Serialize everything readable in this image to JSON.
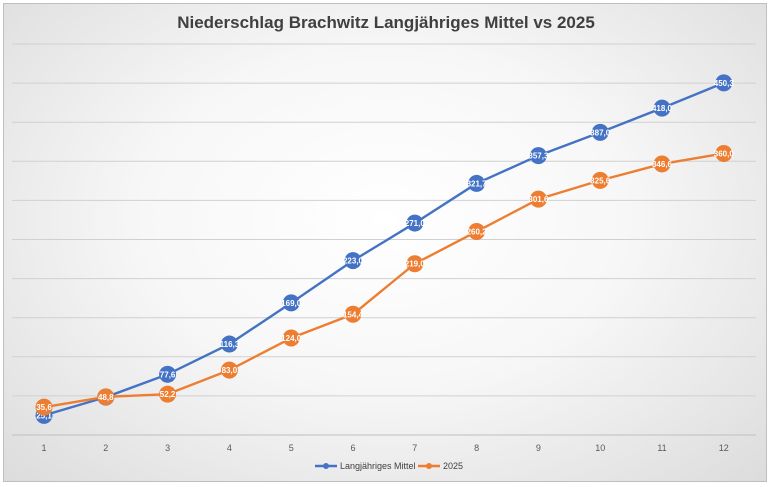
{
  "chart_data": {
    "type": "line",
    "title": "Niederschlag Brachwitz Langjähriges Mittel vs 2025",
    "categories": [
      "1",
      "2",
      "3",
      "4",
      "5",
      "6",
      "7",
      "8",
      "9",
      "10",
      "11",
      "12"
    ],
    "ylim": [
      0,
      500
    ],
    "grid": true,
    "legend": "bottom",
    "series": [
      {
        "name": "Langjähriges Mittel",
        "color": "#4472c4",
        "values": [
          25.1,
          48.4,
          77.6,
          116.3,
          169.0,
          223.0,
          271.0,
          321.7,
          357.3,
          387.0,
          418.0,
          450.3
        ],
        "labels": [
          "25,1",
          "48,4",
          "77,6",
          "116,3",
          "169,0",
          "223,0",
          "271,0",
          "321,7",
          "357,3",
          "387,0",
          "418,0",
          "450,3"
        ]
      },
      {
        "name": "2025",
        "color": "#ed7d31",
        "values": [
          35.6,
          48.8,
          52.2,
          83.0,
          124.0,
          154.4,
          219.0,
          260.2,
          301.6,
          325.6,
          346.6,
          360.0
        ],
        "labels": [
          "35,6",
          "48,8",
          "52,2",
          "83,0",
          "124,0",
          "154,4",
          "219,0",
          "260,2",
          "301,6",
          "325,6",
          "346,6",
          "360,0"
        ]
      }
    ]
  }
}
